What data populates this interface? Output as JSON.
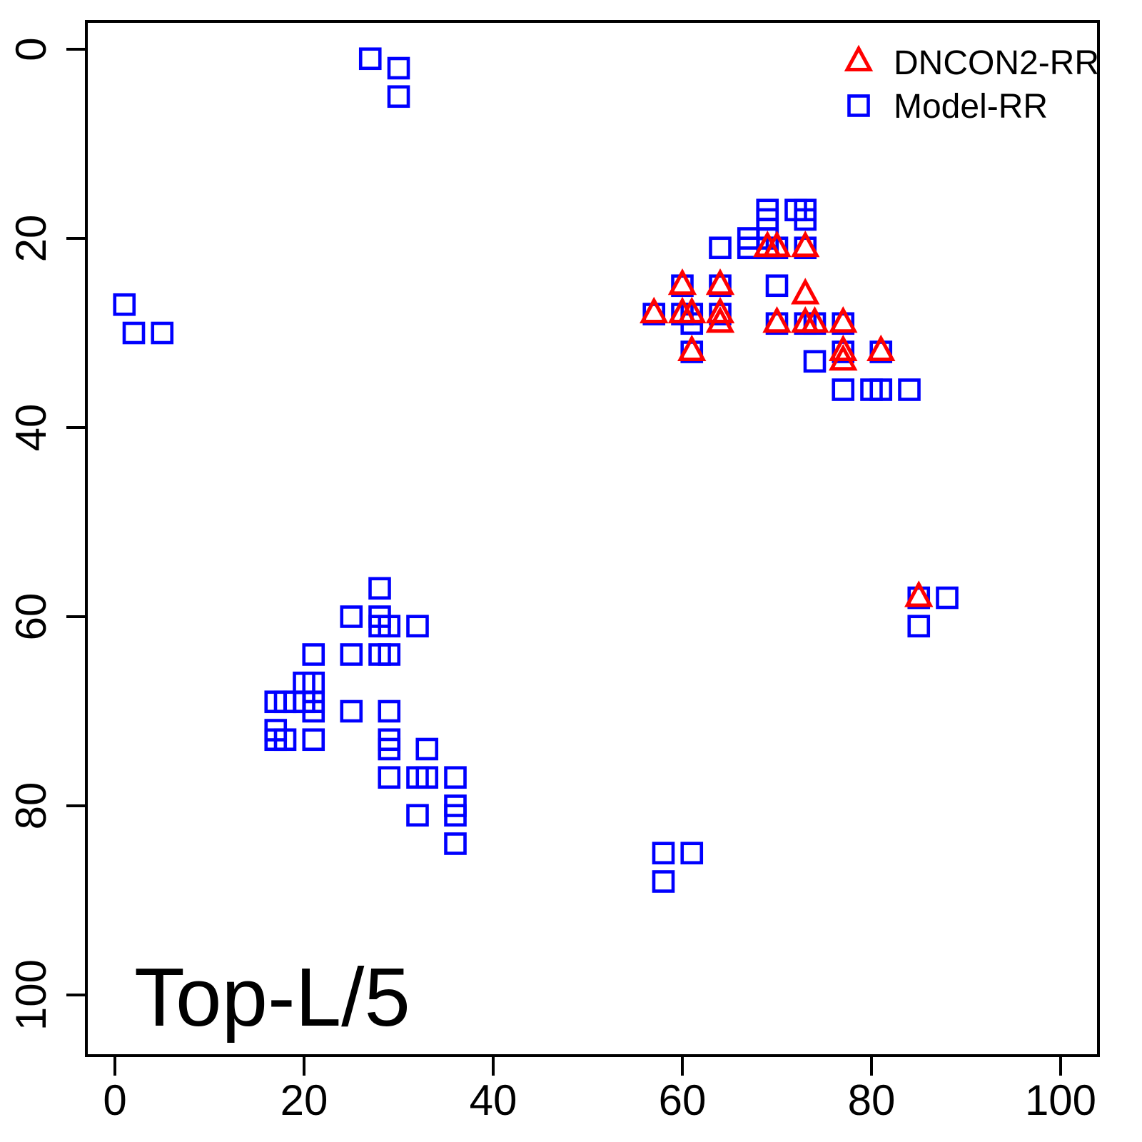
{
  "chart_data": {
    "type": "scatter",
    "title": "Top-L/5",
    "xlabel": "",
    "ylabel": "",
    "x_ticks": [
      0,
      20,
      40,
      60,
      80,
      100
    ],
    "y_ticks": [
      0,
      20,
      40,
      60,
      80,
      100
    ],
    "x_range": [
      -3,
      104
    ],
    "y_range": [
      -3,
      106.5
    ],
    "y_axis_reversed": true,
    "grid": false,
    "legend_position": "top-right",
    "series": [
      {
        "name": "DNCON2-RR",
        "marker": "triangle-up-open",
        "color": "#ff0000",
        "points": [
          [
            69,
            21
          ],
          [
            70,
            21
          ],
          [
            73,
            21
          ],
          [
            60,
            25
          ],
          [
            64,
            25
          ],
          [
            73,
            26
          ],
          [
            57,
            28
          ],
          [
            60,
            28
          ],
          [
            61,
            28
          ],
          [
            64,
            28
          ],
          [
            64,
            29
          ],
          [
            70,
            29
          ],
          [
            73,
            29
          ],
          [
            74,
            29
          ],
          [
            77,
            29
          ],
          [
            61,
            32
          ],
          [
            77,
            32
          ],
          [
            81,
            32
          ],
          [
            77,
            33
          ],
          [
            85,
            58
          ]
        ]
      },
      {
        "name": "Model-RR",
        "marker": "square-open",
        "color": "#0000ff",
        "points": [
          [
            27,
            1
          ],
          [
            30,
            2
          ],
          [
            30,
            5
          ],
          [
            1,
            27
          ],
          [
            2,
            30
          ],
          [
            5,
            30
          ],
          [
            69,
            17
          ],
          [
            72,
            17
          ],
          [
            73,
            17
          ],
          [
            69,
            18
          ],
          [
            73,
            18
          ],
          [
            69,
            19
          ],
          [
            67,
            20
          ],
          [
            69,
            20
          ],
          [
            64,
            21
          ],
          [
            67,
            21
          ],
          [
            69,
            21
          ],
          [
            70,
            21
          ],
          [
            73,
            21
          ],
          [
            60,
            25
          ],
          [
            64,
            25
          ],
          [
            70,
            25
          ],
          [
            57,
            28
          ],
          [
            60,
            28
          ],
          [
            61,
            28
          ],
          [
            64,
            28
          ],
          [
            61,
            29
          ],
          [
            70,
            29
          ],
          [
            73,
            29
          ],
          [
            74,
            29
          ],
          [
            77,
            29
          ],
          [
            61,
            32
          ],
          [
            77,
            32
          ],
          [
            81,
            32
          ],
          [
            74,
            33
          ],
          [
            77,
            36
          ],
          [
            80,
            36
          ],
          [
            81,
            36
          ],
          [
            84,
            36
          ],
          [
            85,
            58
          ],
          [
            88,
            58
          ],
          [
            85,
            61
          ],
          [
            58,
            85
          ],
          [
            61,
            85
          ],
          [
            58,
            88
          ],
          [
            28,
            57
          ],
          [
            25,
            60
          ],
          [
            28,
            60
          ],
          [
            28,
            61
          ],
          [
            29,
            61
          ],
          [
            32,
            61
          ],
          [
            21,
            64
          ],
          [
            25,
            64
          ],
          [
            28,
            64
          ],
          [
            29,
            64
          ],
          [
            20,
            67
          ],
          [
            21,
            67
          ],
          [
            17,
            69
          ],
          [
            18,
            69
          ],
          [
            19,
            69
          ],
          [
            20,
            69
          ],
          [
            21,
            69
          ],
          [
            21,
            70
          ],
          [
            25,
            70
          ],
          [
            29,
            70
          ],
          [
            17,
            72
          ],
          [
            17,
            73
          ],
          [
            18,
            73
          ],
          [
            21,
            73
          ],
          [
            29,
            73
          ],
          [
            29,
            74
          ],
          [
            33,
            74
          ],
          [
            29,
            77
          ],
          [
            32,
            77
          ],
          [
            33,
            77
          ],
          [
            36,
            77
          ],
          [
            36,
            80
          ],
          [
            32,
            81
          ],
          [
            36,
            81
          ],
          [
            36,
            84
          ]
        ]
      }
    ]
  }
}
